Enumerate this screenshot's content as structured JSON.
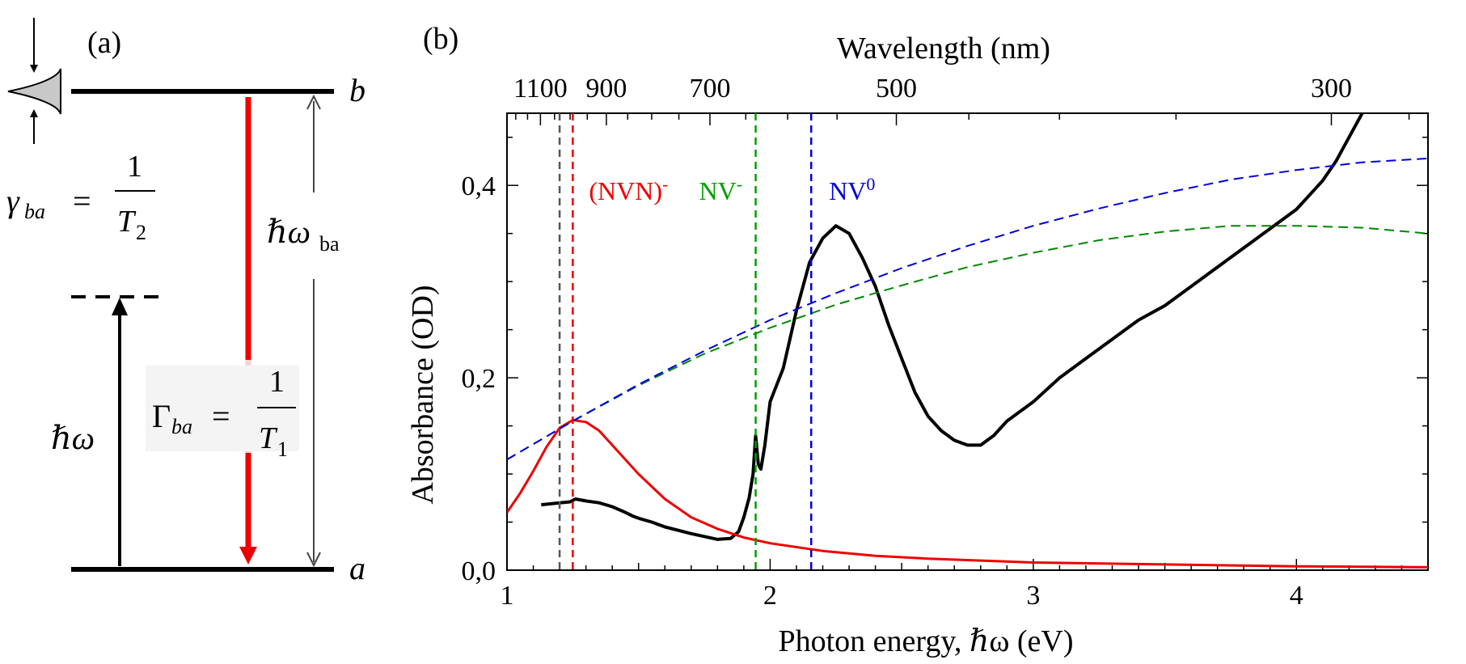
{
  "panel_a": {
    "label": "(a)",
    "level_upper": "b",
    "level_lower": "a",
    "gamma_lhs": "γ",
    "gamma_sub": "ba",
    "gamma_equals": "=",
    "gamma_num": "1",
    "gamma_den": "T",
    "gamma_den_sub": "2",
    "omega_ba_prefix": "ℏω",
    "omega_ba_sub": "ba",
    "Gamma_lhs": "Γ",
    "Gamma_sub": "ba",
    "Gamma_equals": "=",
    "Gamma_num": "1",
    "Gamma_den": "T",
    "Gamma_den_sub": "1",
    "pump_label": "ℏω",
    "colors": {
      "line": "#000000",
      "decay": "#ee0000",
      "gauss": "#c8c8c8",
      "arrow_gray": "#444444"
    }
  },
  "panel_b": {
    "label": "(b)",
    "chart_data": {
      "type": "line",
      "title": "",
      "xlabel": "Photon energy,  ℏω  (eV)",
      "ylabel": "Absorbance (OD)",
      "top_axis_label": "Wavelength (nm)",
      "xlim": [
        1.0,
        4.5
      ],
      "ylim": [
        0.0,
        0.475
      ],
      "x_ticks": [
        1,
        2,
        3,
        4
      ],
      "x_tick_labels": [
        "1",
        "2",
        "3",
        "4"
      ],
      "y_ticks": [
        0.0,
        0.2,
        0.4
      ],
      "y_tick_labels": [
        "0,0",
        "0,2",
        "0,4"
      ],
      "top_ticks_nm": [
        1100,
        900,
        700,
        500,
        300
      ],
      "top_tick_labels": [
        "1100",
        "900",
        "700",
        "500",
        "300"
      ],
      "top_minor_ticks_nm": [
        1200,
        1150,
        1050,
        1000,
        950,
        850,
        800,
        750,
        650,
        600,
        550,
        450,
        400,
        350,
        280
      ],
      "vertical_markers": [
        {
          "name": "black-marker",
          "x": 1.2,
          "color": "#555555",
          "label": ""
        },
        {
          "name": "nvn-marker",
          "x": 1.25,
          "color": "#ee0000",
          "label": "(NVN)",
          "sup": "-"
        },
        {
          "name": "nv-minus-marker",
          "x": 1.945,
          "color": "#00a000",
          "label": "NV",
          "sup": "-"
        },
        {
          "name": "nv0-marker",
          "x": 2.156,
          "color": "#0000dd",
          "label": "NV",
          "sup": "0"
        }
      ],
      "series": [
        {
          "name": "measured-absorbance",
          "color": "#000000",
          "style": "solid",
          "x": [
            1.13,
            1.2,
            1.24,
            1.26,
            1.3,
            1.35,
            1.4,
            1.45,
            1.48,
            1.5,
            1.55,
            1.6,
            1.7,
            1.8,
            1.85,
            1.88,
            1.9,
            1.92,
            1.935,
            1.945,
            1.955,
            1.965,
            1.98,
            2.0,
            2.05,
            2.1,
            2.15,
            2.2,
            2.25,
            2.3,
            2.35,
            2.4,
            2.45,
            2.5,
            2.55,
            2.6,
            2.65,
            2.7,
            2.75,
            2.8,
            2.85,
            2.9,
            3.0,
            3.1,
            3.2,
            3.3,
            3.4,
            3.5,
            3.6,
            3.7,
            3.8,
            3.9,
            4.0,
            4.1,
            4.15,
            4.2,
            4.25
          ],
          "values": [
            0.068,
            0.07,
            0.071,
            0.074,
            0.072,
            0.07,
            0.066,
            0.06,
            0.056,
            0.054,
            0.05,
            0.045,
            0.038,
            0.032,
            0.033,
            0.04,
            0.055,
            0.075,
            0.1,
            0.14,
            0.11,
            0.105,
            0.13,
            0.175,
            0.21,
            0.27,
            0.32,
            0.345,
            0.358,
            0.35,
            0.325,
            0.295,
            0.255,
            0.22,
            0.185,
            0.16,
            0.145,
            0.135,
            0.13,
            0.13,
            0.14,
            0.155,
            0.175,
            0.2,
            0.22,
            0.24,
            0.26,
            0.275,
            0.295,
            0.315,
            0.335,
            0.355,
            0.375,
            0.405,
            0.425,
            0.45,
            0.475
          ]
        },
        {
          "name": "nvn-fit",
          "color": "#ee0000",
          "style": "solid",
          "x": [
            1.0,
            1.05,
            1.1,
            1.15,
            1.2,
            1.25,
            1.3,
            1.35,
            1.4,
            1.5,
            1.6,
            1.7,
            1.8,
            1.9,
            2.0,
            2.2,
            2.4,
            2.6,
            2.8,
            3.0,
            3.5,
            4.0,
            4.5
          ],
          "values": [
            0.06,
            0.08,
            0.103,
            0.128,
            0.148,
            0.156,
            0.154,
            0.145,
            0.13,
            0.1,
            0.074,
            0.055,
            0.043,
            0.034,
            0.028,
            0.02,
            0.015,
            0.012,
            0.01,
            0.008,
            0.006,
            0.004,
            0.003
          ]
        },
        {
          "name": "nv-minus-fit",
          "color": "#008800",
          "style": "dashed",
          "x": [
            1.0,
            1.25,
            1.5,
            1.75,
            2.0,
            2.25,
            2.5,
            2.75,
            3.0,
            3.25,
            3.5,
            3.75,
            4.0,
            4.25,
            4.5
          ],
          "values": [
            0.115,
            0.155,
            0.192,
            0.225,
            0.252,
            0.276,
            0.296,
            0.315,
            0.33,
            0.343,
            0.352,
            0.358,
            0.358,
            0.356,
            0.35
          ]
        },
        {
          "name": "nv0-fit",
          "color": "#0000dd",
          "style": "dashed",
          "x": [
            1.0,
            1.25,
            1.5,
            1.75,
            2.0,
            2.25,
            2.5,
            2.75,
            3.0,
            3.25,
            3.5,
            3.75,
            4.0,
            4.25,
            4.5
          ],
          "values": [
            0.115,
            0.155,
            0.193,
            0.228,
            0.26,
            0.288,
            0.314,
            0.337,
            0.358,
            0.376,
            0.392,
            0.406,
            0.416,
            0.424,
            0.428
          ]
        }
      ]
    }
  }
}
